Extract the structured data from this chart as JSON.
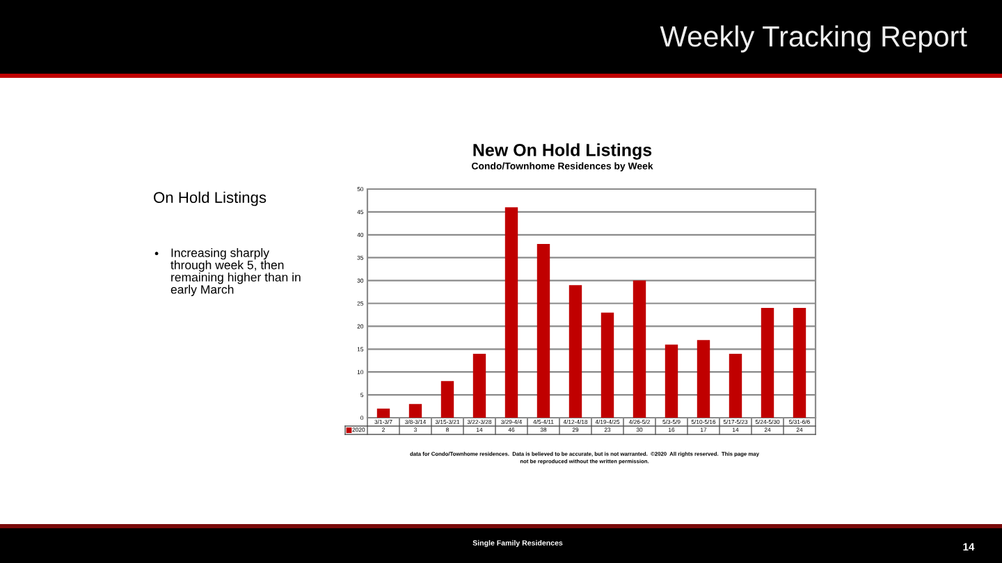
{
  "chart_data": [
    {
      "type": "bar",
      "title": "New On Hold Listings",
      "subtitle": "Condo/Townhome Residences by Week",
      "categories": [
        "3/1-3/7",
        "3/8-3/14",
        "3/15-3/21",
        "3/22-3/28",
        "3/29-4/4",
        "4/5-4/11",
        "4/12-4/18",
        "4/19-4/25",
        "4/26-5/2",
        "5/3-5/9",
        "5/10-5/16",
        "5/17-5/23",
        "5/24-5/30",
        "5/31-6/6"
      ],
      "series": [
        {
          "name": "2020",
          "color": "#c00000",
          "values": [
            2,
            3,
            8,
            14,
            46,
            38,
            29,
            23,
            30,
            16,
            17,
            14,
            24,
            24
          ]
        }
      ],
      "ylim": [
        0,
        50
      ],
      "yticks": [
        0,
        5,
        10,
        15,
        20,
        25,
        30,
        35,
        40,
        45,
        50
      ],
      "grid": "y",
      "legend": "bottom left",
      "data_labels": true,
      "annotations": [
        "data for Condo/Townhome residences.  Data is believed to be accurate, but is not warranted.  ©2020  All rights reserved.  This page may\nnot be reproduced without the written permission."
      ]
    },
    {
      "type": "other",
      "title": "Weekly Tracking Report",
      "subtitle": "On Hold Listings",
      "annotations": [
        "•",
        "Increasing sharply\nthrough week 5, then\nremaining higher than in\nearly March",
        "Single Family Residences",
        "14"
      ]
    }
  ]
}
